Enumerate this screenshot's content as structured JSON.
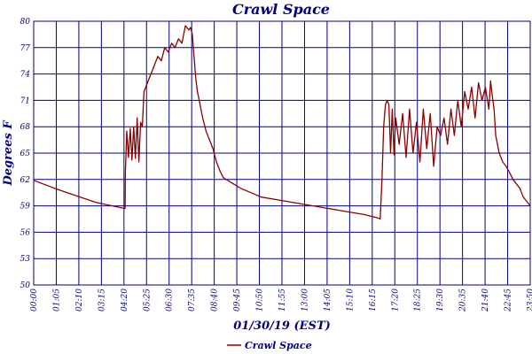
{
  "chart_data": {
    "type": "line",
    "title": "Crawl Space",
    "xlabel": "01/30/19 (EST)",
    "ylabel": "Degrees F",
    "ylim": [
      50,
      80
    ],
    "yticks": [
      "80",
      "77",
      "74",
      "71",
      "68",
      "65",
      "62",
      "59",
      "56",
      "53",
      "50"
    ],
    "xticks": [
      "00:00",
      "01:05",
      "02:10",
      "03:15",
      "04:20",
      "05:25",
      "06:30",
      "07:35",
      "08:40",
      "09:45",
      "10:50",
      "11:55",
      "13:00",
      "14:05",
      "15:10",
      "16:15",
      "17:20",
      "18:25",
      "19:30",
      "20:35",
      "21:40",
      "22:45",
      "23:50"
    ],
    "grid": true,
    "legend_position": "bottom-left",
    "colors": {
      "series": "#8b0000",
      "grid": "#000080",
      "text": "#000080"
    },
    "series": [
      {
        "name": "Crawl Space",
        "x_minutes": [
          0,
          60,
          120,
          180,
          240,
          265,
          266,
          270,
          275,
          280,
          285,
          290,
          295,
          300,
          305,
          310,
          315,
          320,
          330,
          340,
          350,
          360,
          370,
          380,
          390,
          400,
          410,
          420,
          430,
          440,
          450,
          455,
          460,
          465,
          470,
          475,
          480,
          490,
          500,
          510,
          520,
          530,
          540,
          550,
          600,
          660,
          720,
          780,
          840,
          900,
          960,
          1000,
          1005,
          1010,
          1015,
          1020,
          1025,
          1030,
          1035,
          1040,
          1045,
          1050,
          1060,
          1070,
          1080,
          1090,
          1100,
          1110,
          1120,
          1130,
          1140,
          1150,
          1160,
          1170,
          1180,
          1190,
          1200,
          1210,
          1220,
          1230,
          1240,
          1250,
          1260,
          1270,
          1280,
          1290,
          1300,
          1310,
          1320,
          1325,
          1330,
          1335,
          1340,
          1350,
          1360,
          1370,
          1380,
          1390,
          1400,
          1410,
          1420,
          1430,
          1440
        ],
        "values": [
          61.9,
          61.0,
          60.2,
          59.4,
          58.9,
          58.7,
          62.8,
          67.5,
          64.5,
          67.8,
          64.2,
          68.0,
          64.4,
          69.0,
          64.0,
          68.5,
          68.0,
          72.0,
          73.0,
          74.0,
          75.0,
          76.0,
          75.5,
          77.0,
          76.5,
          77.5,
          77.0,
          78.0,
          77.5,
          79.5,
          79.0,
          79.3,
          78.5,
          76.0,
          73.5,
          72.0,
          71.0,
          69.0,
          67.5,
          66.5,
          65.5,
          64.0,
          63.0,
          62.2,
          61.0,
          60.0,
          59.6,
          59.2,
          58.8,
          58.4,
          58.0,
          57.6,
          57.5,
          62.0,
          68.0,
          70.5,
          71.0,
          70.5,
          65.0,
          70.0,
          64.8,
          69.0,
          66.0,
          69.5,
          64.5,
          70.0,
          65.0,
          68.5,
          64.0,
          70.0,
          65.5,
          69.5,
          63.5,
          68.0,
          67.0,
          69.0,
          66.0,
          70.0,
          67.0,
          71.0,
          68.0,
          72.0,
          70.0,
          72.5,
          69.0,
          73.0,
          71.0,
          72.5,
          70.0,
          73.2,
          71.5,
          70.0,
          67.0,
          65.0,
          64.0,
          63.5,
          62.8,
          62.0,
          61.5,
          61.0,
          60.0,
          59.5,
          59.0
        ]
      }
    ]
  }
}
